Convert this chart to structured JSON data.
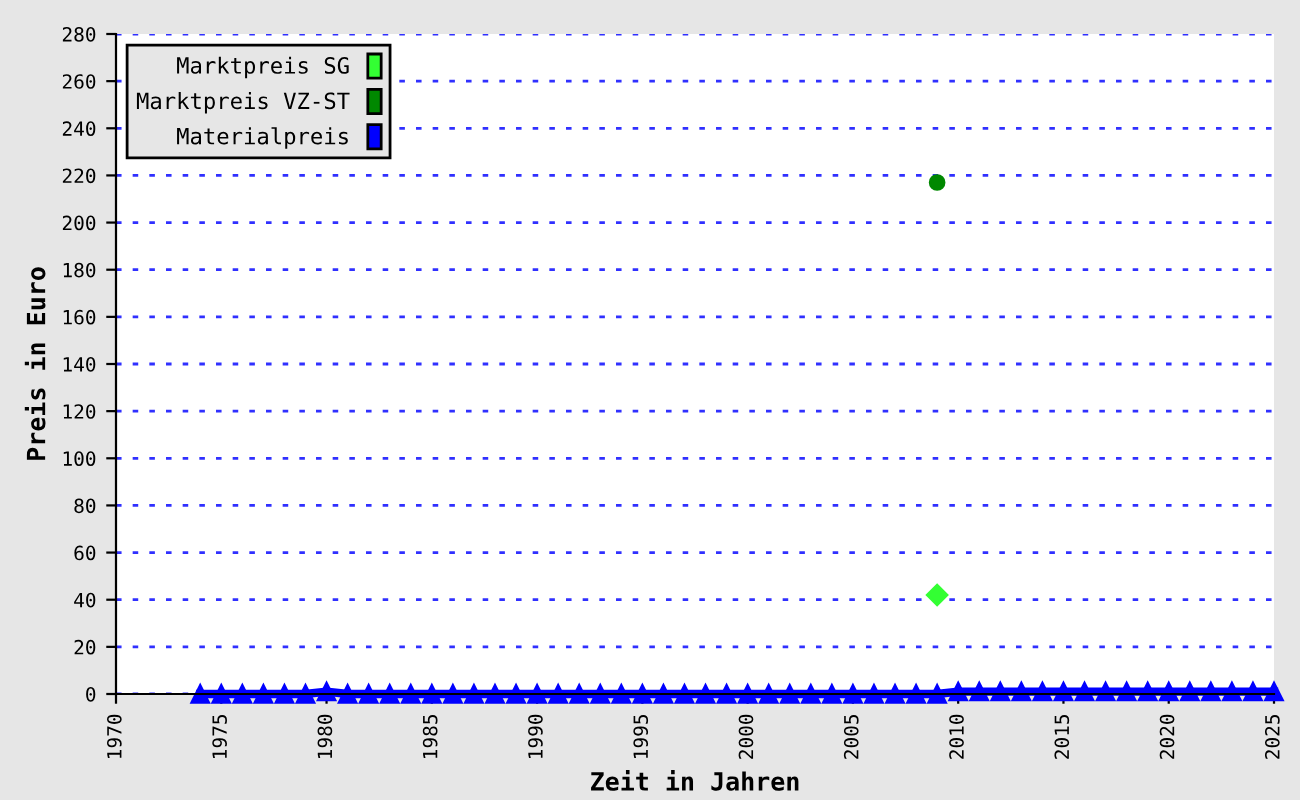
{
  "chart_data": {
    "type": "line",
    "xlabel": "Zeit in Jahren",
    "ylabel": "Preis in Euro",
    "xlim": [
      1970,
      2025
    ],
    "xticks": [
      1970,
      1975,
      1980,
      1985,
      1990,
      1995,
      2000,
      2005,
      2010,
      2015,
      2020,
      2025
    ],
    "ylim": [
      0,
      280
    ],
    "yticks": [
      0,
      20,
      40,
      60,
      80,
      100,
      120,
      140,
      160,
      180,
      200,
      220,
      240,
      260,
      280
    ],
    "grid": "y",
    "legend": "top left",
    "series": [
      {
        "name": "Marktpreis SG",
        "color": "#33ff33",
        "type": "scatter",
        "marker": "diamond",
        "x": [
          2009
        ],
        "values": [
          42
        ]
      },
      {
        "name": "Marktpreis VZ-ST",
        "color": "#008800",
        "type": "scatter",
        "marker": "circle",
        "x": [
          2009
        ],
        "values": [
          217
        ]
      },
      {
        "name": "Materialpreis",
        "color": "#0000ff",
        "marker": "triangle",
        "x": [
          1974,
          1975,
          1976,
          1977,
          1978,
          1979,
          1980,
          1981,
          1982,
          1983,
          1984,
          1985,
          1986,
          1987,
          1988,
          1989,
          1990,
          1991,
          1992,
          1993,
          1994,
          1995,
          1996,
          1997,
          1998,
          1999,
          2000,
          2001,
          2002,
          2003,
          2004,
          2005,
          2006,
          2007,
          2008,
          2009,
          2010,
          2011,
          2012,
          2013,
          2014,
          2015,
          2016,
          2017,
          2018,
          2019,
          2020,
          2021,
          2022,
          2023,
          2024,
          2025
        ],
        "values": [
          0,
          0,
          0,
          0,
          0,
          0,
          1,
          0,
          0,
          0,
          0,
          0,
          0,
          0,
          0,
          0,
          0,
          0,
          0,
          0,
          0,
          0,
          0,
          0,
          0,
          0,
          0,
          0,
          0,
          0,
          0,
          0,
          0,
          0,
          0,
          0,
          1,
          1,
          1,
          1,
          1,
          1,
          1,
          1,
          1,
          1,
          1,
          1,
          1,
          1,
          1,
          1
        ]
      }
    ]
  }
}
